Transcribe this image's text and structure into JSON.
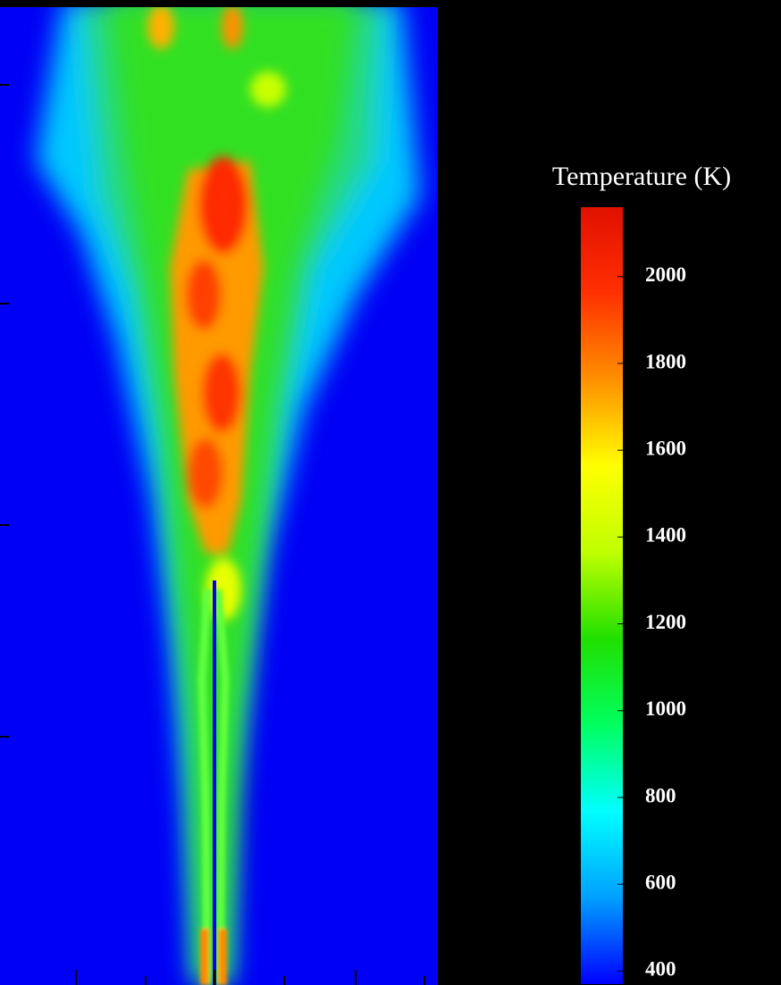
{
  "chart_data": {
    "type": "heatmap",
    "colorbar": {
      "title": "Temperature (K)",
      "clim": [
        370,
        2160
      ],
      "ticks": [
        400,
        600,
        800,
        1000,
        1200,
        1400,
        1600,
        1800,
        2000
      ],
      "colors": [
        "#0000ff",
        "#00a0ff",
        "#00ffff",
        "#00ff60",
        "#20e000",
        "#c0ff00",
        "#ffff00",
        "#ff9000",
        "#ff3000",
        "#e01000"
      ]
    }
  }
}
